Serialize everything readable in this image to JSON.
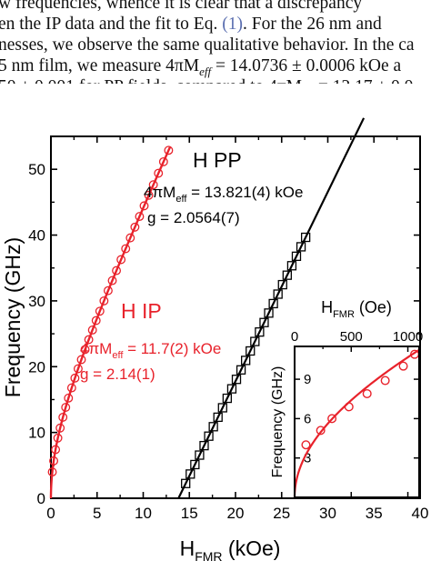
{
  "text_lines": [
    {
      "runs": [
        {
          "t": "w frequencies, whence it is clear that a discrepancy "
        }
      ]
    },
    {
      "runs": [
        {
          "t": "en the IP data and the fit to Eq. "
        },
        {
          "t": "(1)",
          "ref": true
        },
        {
          "t": ". For the 26 nm and "
        }
      ]
    },
    {
      "runs": [
        {
          "t": "nesses, we observe the same qualitative behavior. In the ca"
        }
      ]
    },
    {
      "runs": [
        {
          "t": "5 nm film, we measure 4πM"
        },
        {
          "t": "eff",
          "sub": true
        },
        {
          "t": " = 14.0736 ± 0.0006 kOe a"
        }
      ]
    },
    {
      "runs": [
        {
          "t": "50 ± 0.001 for PP fields, compared to 4πM"
        },
        {
          "t": "eff",
          "sub": true
        },
        {
          "t": " = 12.17 ± 0.0"
        }
      ]
    }
  ],
  "colors": {
    "ip": "#e8222b",
    "pp": "#000000"
  },
  "chart_data": [
    {
      "id": "main",
      "type": "scatter",
      "xlabel": {
        "main": "H",
        "sub": "FMR",
        "rest": " (kOe)"
      },
      "ylabel": "Frequency (GHz)",
      "xlim": [
        0,
        40
      ],
      "ylim": [
        0,
        55
      ],
      "xticks": [
        0,
        5,
        10,
        15,
        20,
        25,
        30,
        35,
        40
      ],
      "yticks": [
        0,
        10,
        20,
        30,
        40,
        50
      ],
      "series": [
        {
          "name": "H IP",
          "marker": "circle",
          "color": "#e8222b",
          "x": [
            0.15,
            0.3,
            0.5,
            0.75,
            1.0,
            1.3,
            1.6,
            1.9,
            2.25,
            2.6,
            2.95,
            3.3,
            3.7,
            4.1,
            4.5,
            4.9,
            5.3,
            5.75,
            6.2,
            6.65,
            7.1,
            7.6,
            8.1,
            8.6,
            9.1,
            9.6,
            10.1,
            10.6,
            11.1,
            11.65,
            12.2,
            12.75
          ],
          "fit": {
            "label_lines": [
              {
                "main": "4πM",
                "sub": "eff",
                "rest": " = 11.7(2) kOe"
              },
              {
                "main": "g = 2.14(1)"
              }
            ],
            "ms_koe": 11.7,
            "g": 2.14,
            "x_end": 12.9
          }
        },
        {
          "name": "H PP",
          "marker": "square",
          "color": "#000000",
          "x": [
            14.6,
            15.1,
            15.6,
            16.1,
            16.6,
            17.1,
            17.6,
            18.1,
            18.6,
            19.1,
            19.6,
            20.1,
            20.6,
            21.1,
            21.6,
            22.1,
            22.6,
            23.1,
            23.6,
            24.1,
            24.6,
            25.1,
            25.6,
            26.1,
            26.6,
            27.1,
            27.6
          ],
          "fit": {
            "label_lines": [
              {
                "main": "4πM",
                "sub": "eff",
                "rest": " = 13.821(4) kOe"
              },
              {
                "main": "g = 2.0564(7)"
              }
            ],
            "ms_koe": 13.821,
            "g": 2.0564,
            "x_end": 33.9
          }
        }
      ]
    },
    {
      "id": "inset",
      "type": "scatter",
      "xlabel": {
        "main": "H",
        "sub": "FMR",
        "rest": " (Oe)"
      },
      "ylabel": "Frequency (GHz)",
      "xlim": [
        0,
        1100
      ],
      "ylim": [
        0,
        11.5
      ],
      "xticks": [
        0,
        500,
        1000
      ],
      "yticks": [
        3,
        6,
        9
      ],
      "series": [
        {
          "name": "H IP",
          "marker": "circle",
          "color": "#e8222b",
          "points": [
            [
              100,
              4.0
            ],
            [
              230,
              5.1
            ],
            [
              330,
              6.0
            ],
            [
              480,
              6.9
            ],
            [
              640,
              7.9
            ],
            [
              800,
              8.9
            ],
            [
              960,
              10.0
            ],
            [
              1060,
              10.9
            ]
          ],
          "fit": {
            "ms_koe": 11.7,
            "g": 2.14
          }
        }
      ]
    }
  ]
}
